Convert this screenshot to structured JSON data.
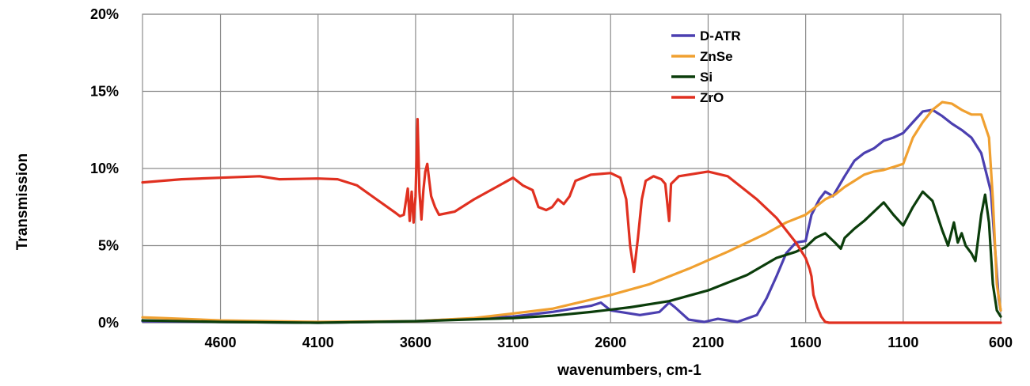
{
  "chart_data": {
    "type": "line",
    "title": "",
    "xlabel": "wavenumbers,  cm-1",
    "ylabel": "Transmission",
    "x_reversed": true,
    "xlim": [
      5000,
      600
    ],
    "ylim": [
      0,
      20
    ],
    "x_ticks": [
      4600,
      4100,
      3600,
      3100,
      2600,
      2100,
      1600,
      1100,
      600
    ],
    "y_ticks": [
      0,
      5,
      10,
      15,
      20
    ],
    "y_tick_labels": [
      "0%",
      "5%",
      "10%",
      "15%",
      "20%"
    ],
    "grid": true,
    "legend_position": "top-right",
    "series": [
      {
        "name": "D-ATR",
        "color": "#4b3fb0",
        "points": [
          [
            5000,
            0.1
          ],
          [
            4600,
            0.05
          ],
          [
            4100,
            0.0
          ],
          [
            3600,
            0.1
          ],
          [
            3100,
            0.4
          ],
          [
            2900,
            0.7
          ],
          [
            2700,
            1.1
          ],
          [
            2650,
            1.3
          ],
          [
            2600,
            0.8
          ],
          [
            2450,
            0.5
          ],
          [
            2350,
            0.7
          ],
          [
            2300,
            1.3
          ],
          [
            2270,
            1.0
          ],
          [
            2200,
            0.2
          ],
          [
            2120,
            0.05
          ],
          [
            2050,
            0.25
          ],
          [
            1950,
            0.05
          ],
          [
            1850,
            0.5
          ],
          [
            1800,
            1.6
          ],
          [
            1750,
            3.0
          ],
          [
            1700,
            4.5
          ],
          [
            1650,
            5.2
          ],
          [
            1600,
            5.3
          ],
          [
            1570,
            7.0
          ],
          [
            1530,
            8.0
          ],
          [
            1500,
            8.5
          ],
          [
            1460,
            8.2
          ],
          [
            1400,
            9.5
          ],
          [
            1350,
            10.5
          ],
          [
            1300,
            11.0
          ],
          [
            1250,
            11.3
          ],
          [
            1200,
            11.8
          ],
          [
            1150,
            12.0
          ],
          [
            1100,
            12.3
          ],
          [
            1050,
            13.0
          ],
          [
            1000,
            13.7
          ],
          [
            950,
            13.8
          ],
          [
            900,
            13.4
          ],
          [
            850,
            12.9
          ],
          [
            800,
            12.5
          ],
          [
            750,
            12.0
          ],
          [
            700,
            11.0
          ],
          [
            650,
            8.5
          ],
          [
            630,
            5.0
          ],
          [
            610,
            1.5
          ],
          [
            600,
            0.8
          ]
        ]
      },
      {
        "name": "ZnSe",
        "color": "#f0a030",
        "points": [
          [
            5000,
            0.35
          ],
          [
            4900,
            0.3
          ],
          [
            4600,
            0.15
          ],
          [
            4100,
            0.05
          ],
          [
            3600,
            0.1
          ],
          [
            3300,
            0.3
          ],
          [
            3100,
            0.6
          ],
          [
            2900,
            0.9
          ],
          [
            2800,
            1.2
          ],
          [
            2600,
            1.8
          ],
          [
            2400,
            2.5
          ],
          [
            2200,
            3.5
          ],
          [
            2000,
            4.6
          ],
          [
            1800,
            5.8
          ],
          [
            1700,
            6.5
          ],
          [
            1600,
            7.0
          ],
          [
            1550,
            7.5
          ],
          [
            1500,
            8.0
          ],
          [
            1450,
            8.3
          ],
          [
            1400,
            8.8
          ],
          [
            1350,
            9.2
          ],
          [
            1300,
            9.6
          ],
          [
            1250,
            9.8
          ],
          [
            1200,
            9.9
          ],
          [
            1150,
            10.1
          ],
          [
            1100,
            10.3
          ],
          [
            1050,
            12.0
          ],
          [
            1000,
            13.0
          ],
          [
            950,
            13.8
          ],
          [
            900,
            14.3
          ],
          [
            850,
            14.2
          ],
          [
            800,
            13.8
          ],
          [
            750,
            13.5
          ],
          [
            700,
            13.5
          ],
          [
            660,
            12.0
          ],
          [
            640,
            8.0
          ],
          [
            620,
            2.5
          ],
          [
            600,
            0.8
          ]
        ]
      },
      {
        "name": "Si",
        "color": "#0b3d0b",
        "points": [
          [
            5000,
            0.15
          ],
          [
            4600,
            0.05
          ],
          [
            4100,
            0.0
          ],
          [
            3600,
            0.1
          ],
          [
            3100,
            0.3
          ],
          [
            2900,
            0.45
          ],
          [
            2700,
            0.7
          ],
          [
            2500,
            1.0
          ],
          [
            2300,
            1.4
          ],
          [
            2100,
            2.1
          ],
          [
            1900,
            3.1
          ],
          [
            1750,
            4.2
          ],
          [
            1700,
            4.4
          ],
          [
            1650,
            4.6
          ],
          [
            1600,
            4.9
          ],
          [
            1550,
            5.5
          ],
          [
            1500,
            5.8
          ],
          [
            1450,
            5.2
          ],
          [
            1420,
            4.8
          ],
          [
            1400,
            5.5
          ],
          [
            1350,
            6.1
          ],
          [
            1300,
            6.6
          ],
          [
            1250,
            7.2
          ],
          [
            1200,
            7.8
          ],
          [
            1150,
            7.0
          ],
          [
            1100,
            6.3
          ],
          [
            1050,
            7.5
          ],
          [
            1000,
            8.5
          ],
          [
            950,
            7.9
          ],
          [
            900,
            6.0
          ],
          [
            870,
            5.0
          ],
          [
            840,
            6.5
          ],
          [
            820,
            5.2
          ],
          [
            800,
            5.8
          ],
          [
            780,
            5.0
          ],
          [
            750,
            4.5
          ],
          [
            730,
            4.0
          ],
          [
            700,
            7.0
          ],
          [
            680,
            8.3
          ],
          [
            660,
            6.5
          ],
          [
            640,
            2.5
          ],
          [
            620,
            0.8
          ],
          [
            600,
            0.4
          ]
        ]
      },
      {
        "name": "ZrO",
        "color": "#e03020",
        "points": [
          [
            5000,
            9.1
          ],
          [
            4800,
            9.3
          ],
          [
            4600,
            9.4
          ],
          [
            4400,
            9.5
          ],
          [
            4300,
            9.3
          ],
          [
            4100,
            9.35
          ],
          [
            4000,
            9.3
          ],
          [
            3900,
            8.9
          ],
          [
            3800,
            8.0
          ],
          [
            3700,
            7.1
          ],
          [
            3680,
            6.9
          ],
          [
            3660,
            7.0
          ],
          [
            3640,
            8.7
          ],
          [
            3630,
            6.6
          ],
          [
            3620,
            8.5
          ],
          [
            3610,
            6.5
          ],
          [
            3600,
            8.2
          ],
          [
            3590,
            13.2
          ],
          [
            3580,
            8.5
          ],
          [
            3570,
            6.7
          ],
          [
            3560,
            8.6
          ],
          [
            3550,
            9.8
          ],
          [
            3540,
            10.3
          ],
          [
            3530,
            9.2
          ],
          [
            3520,
            8.2
          ],
          [
            3500,
            7.5
          ],
          [
            3480,
            7.0
          ],
          [
            3400,
            7.2
          ],
          [
            3300,
            8.0
          ],
          [
            3200,
            8.7
          ],
          [
            3100,
            9.4
          ],
          [
            3050,
            8.9
          ],
          [
            3000,
            8.6
          ],
          [
            2970,
            7.5
          ],
          [
            2930,
            7.3
          ],
          [
            2900,
            7.5
          ],
          [
            2870,
            8.0
          ],
          [
            2840,
            7.7
          ],
          [
            2810,
            8.2
          ],
          [
            2780,
            9.2
          ],
          [
            2700,
            9.6
          ],
          [
            2600,
            9.7
          ],
          [
            2550,
            9.4
          ],
          [
            2520,
            8.0
          ],
          [
            2500,
            5.0
          ],
          [
            2480,
            3.3
          ],
          [
            2460,
            5.5
          ],
          [
            2440,
            8.0
          ],
          [
            2420,
            9.2
          ],
          [
            2380,
            9.5
          ],
          [
            2340,
            9.3
          ],
          [
            2320,
            9.0
          ],
          [
            2300,
            6.6
          ],
          [
            2290,
            9.0
          ],
          [
            2250,
            9.5
          ],
          [
            2100,
            9.8
          ],
          [
            2000,
            9.5
          ],
          [
            1950,
            9.0
          ],
          [
            1850,
            8.0
          ],
          [
            1750,
            6.8
          ],
          [
            1700,
            6.0
          ],
          [
            1650,
            5.2
          ],
          [
            1600,
            4.2
          ],
          [
            1580,
            3.5
          ],
          [
            1570,
            3.0
          ],
          [
            1560,
            1.8
          ],
          [
            1540,
            1.0
          ],
          [
            1520,
            0.4
          ],
          [
            1500,
            0.05
          ],
          [
            1480,
            0.0
          ],
          [
            1300,
            0.0
          ],
          [
            1100,
            0.0
          ],
          [
            900,
            0.0
          ],
          [
            600,
            0.0
          ]
        ]
      }
    ]
  }
}
